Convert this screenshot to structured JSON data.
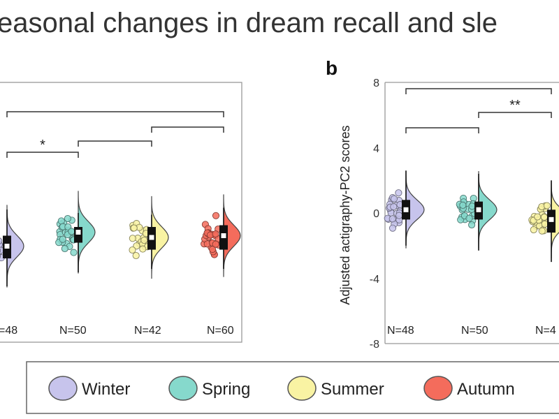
{
  "title": "easonal changes in dream recall and sle",
  "colors": {
    "Winter": "#c7c4ec",
    "Spring": "#86d9cc",
    "Summer": "#f9f3a3",
    "Autumn": "#f46c5c"
  },
  "legend": [
    "Winter",
    "Spring",
    "Summer",
    "Autumn"
  ],
  "chart_data": [
    {
      "type": "violin",
      "panel_label": "",
      "categories": [
        "Winter",
        "Spring",
        "Summer",
        "Autumn"
      ],
      "n_labels": [
        "=48",
        "N=50",
        "N=42",
        "N=60"
      ],
      "medians": [
        -1.3,
        -0.5,
        -0.8,
        -0.7
      ],
      "boxes": [
        [
          -2.0,
          -0.7
        ],
        [
          -1.1,
          -0.2
        ],
        [
          -1.5,
          -0.2
        ],
        [
          -1.5,
          -0.1
        ]
      ],
      "whiskers": [
        [
          -3.6,
          0.8
        ],
        [
          -2.8,
          0.6
        ],
        [
          -2.6,
          0.5
        ],
        [
          -2.6,
          0.9
        ]
      ],
      "ylim": [
        -6,
        8
      ],
      "significance": [
        {
          "from": 0,
          "to": 3,
          "label": ""
        },
        {
          "from": 2,
          "to": 3,
          "label": ""
        },
        {
          "from": 1,
          "to": 2,
          "label": ""
        },
        {
          "from": 0,
          "to": 1,
          "label": "*"
        }
      ]
    },
    {
      "type": "violin",
      "panel_label": "b",
      "ylabel": "Adjusted actigraphy-PC2 scores",
      "yticks": [
        8,
        4,
        0,
        -4,
        -8
      ],
      "ylim": [
        -8,
        8
      ],
      "categories": [
        "Winter",
        "Spring",
        "Summer"
      ],
      "n_labels": [
        "N=48",
        "N=50",
        "N=4"
      ],
      "medians": [
        0.2,
        0.2,
        -0.4
      ],
      "boxes": [
        [
          -0.4,
          0.8
        ],
        [
          -0.4,
          0.7
        ],
        [
          -1.2,
          0.2
        ]
      ],
      "whiskers": [
        [
          -2.0,
          2.6
        ],
        [
          -2.3,
          2.4
        ],
        [
          -3.0,
          2.0
        ]
      ],
      "significance": [
        {
          "from": 0,
          "to": 2,
          "label": ""
        },
        {
          "from": 1,
          "to": 2,
          "label": "**"
        },
        {
          "from": 0,
          "to": 1,
          "label": ""
        }
      ]
    }
  ]
}
